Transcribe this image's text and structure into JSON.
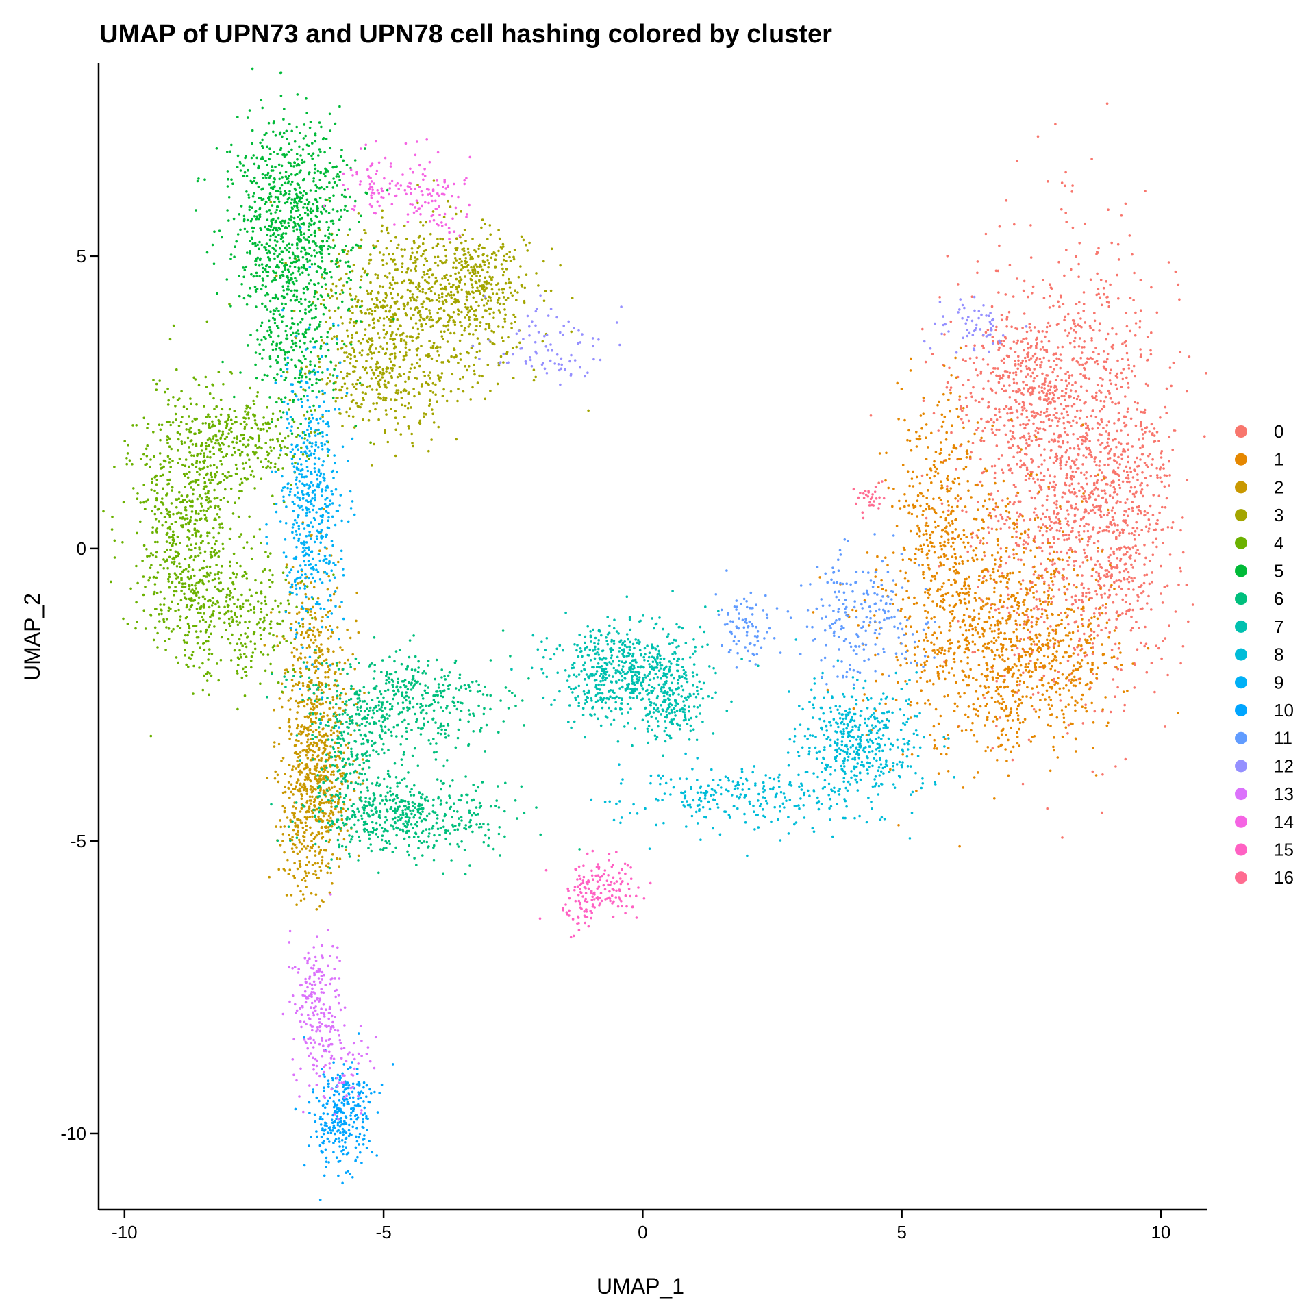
{
  "chart_data": {
    "type": "scatter",
    "title": "UMAP of UPN73 and UPN78 cell hashing colored by cluster",
    "xlabel": "UMAP_1",
    "ylabel": "UMAP_2",
    "xlim": [
      -10.5,
      10.9
    ],
    "ylim": [
      -11.3,
      8.3
    ],
    "xticks": [
      -10,
      -5,
      0,
      5,
      10
    ],
    "yticks": [
      5,
      0,
      -5,
      -10
    ],
    "xtick_labels": [
      "-10",
      "-5",
      "0",
      "5",
      "10"
    ],
    "ytick_labels": [
      "5",
      "0",
      "-5",
      "-10"
    ],
    "grid": false,
    "legend_position": "right",
    "series": [
      {
        "name": "0",
        "color": "#F8766D",
        "regions": [
          {
            "cx": 8.3,
            "cy": 1.3,
            "sx": 1.0,
            "sy": 1.9,
            "n": 1400
          },
          {
            "cx": 7.3,
            "cy": 2.8,
            "sx": 0.7,
            "sy": 0.6,
            "n": 300
          },
          {
            "cx": 9.2,
            "cy": 0.5,
            "sx": 0.5,
            "sy": 1.5,
            "n": 300
          }
        ]
      },
      {
        "name": "1",
        "color": "#E58700",
        "regions": [
          {
            "cx": 6.6,
            "cy": -1.2,
            "sx": 1.0,
            "sy": 1.2,
            "n": 900
          },
          {
            "cx": 7.7,
            "cy": -2.0,
            "sx": 0.7,
            "sy": 0.6,
            "n": 300
          },
          {
            "cx": 5.7,
            "cy": 0.8,
            "sx": 0.4,
            "sy": 1.0,
            "n": 250
          }
        ]
      },
      {
        "name": "2",
        "color": "#C99800",
        "regions": [
          {
            "cx": -6.3,
            "cy": -2.6,
            "sx": 0.35,
            "sy": 1.1,
            "n": 500
          },
          {
            "cx": -6.3,
            "cy": -4.0,
            "sx": 0.35,
            "sy": 0.6,
            "n": 300
          },
          {
            "cx": -6.5,
            "cy": -5.2,
            "sx": 0.25,
            "sy": 0.5,
            "n": 120
          }
        ]
      },
      {
        "name": "3",
        "color": "#A3A500",
        "regions": [
          {
            "cx": -4.2,
            "cy": 4.2,
            "sx": 1.0,
            "sy": 0.7,
            "n": 800
          },
          {
            "cx": -5.0,
            "cy": 2.9,
            "sx": 0.7,
            "sy": 0.5,
            "n": 300
          },
          {
            "cx": -3.2,
            "cy": 4.6,
            "sx": 0.4,
            "sy": 0.4,
            "n": 150
          }
        ]
      },
      {
        "name": "4",
        "color": "#6BB100",
        "regions": [
          {
            "cx": -8.8,
            "cy": 0.3,
            "sx": 0.55,
            "sy": 1.1,
            "n": 700
          },
          {
            "cx": -7.8,
            "cy": 1.8,
            "sx": 0.7,
            "sy": 0.4,
            "n": 300
          },
          {
            "cx": -7.8,
            "cy": -1.2,
            "sx": 0.7,
            "sy": 0.5,
            "n": 250
          }
        ]
      },
      {
        "name": "5",
        "color": "#00BA38",
        "regions": [
          {
            "cx": -6.8,
            "cy": 5.5,
            "sx": 0.6,
            "sy": 0.9,
            "n": 900
          },
          {
            "cx": -6.7,
            "cy": 3.4,
            "sx": 0.4,
            "sy": 0.6,
            "n": 200
          }
        ]
      },
      {
        "name": "6",
        "color": "#00BF7D",
        "regions": [
          {
            "cx": -4.8,
            "cy": -2.6,
            "sx": 1.0,
            "sy": 0.4,
            "n": 450
          },
          {
            "cx": -4.6,
            "cy": -4.6,
            "sx": 0.9,
            "sy": 0.35,
            "n": 450
          },
          {
            "cx": -5.6,
            "cy": -3.7,
            "sx": 0.4,
            "sy": 0.6,
            "n": 200
          }
        ]
      },
      {
        "name": "7",
        "color": "#00C0AF",
        "regions": [
          {
            "cx": -0.4,
            "cy": -2.1,
            "sx": 0.7,
            "sy": 0.45,
            "n": 600
          },
          {
            "cx": 0.6,
            "cy": -2.7,
            "sx": 0.3,
            "sy": 0.3,
            "n": 150
          }
        ]
      },
      {
        "name": "8",
        "color": "#00BCD8",
        "regions": [
          {
            "cx": 4.2,
            "cy": -3.3,
            "sx": 0.6,
            "sy": 0.5,
            "n": 450
          },
          {
            "cx": 2.0,
            "cy": -4.3,
            "sx": 1.2,
            "sy": 0.3,
            "n": 250
          }
        ]
      },
      {
        "name": "9",
        "color": "#00B0F6",
        "regions": [
          {
            "cx": -6.4,
            "cy": 0.8,
            "sx": 0.3,
            "sy": 1.2,
            "n": 500
          }
        ]
      },
      {
        "name": "10",
        "color": "#00A5FF",
        "regions": [
          {
            "cx": -5.8,
            "cy": -9.7,
            "sx": 0.3,
            "sy": 0.45,
            "n": 300
          }
        ]
      },
      {
        "name": "11",
        "color": "#619CFF",
        "regions": [
          {
            "cx": 4.2,
            "cy": -1.2,
            "sx": 0.6,
            "sy": 0.6,
            "n": 200
          },
          {
            "cx": 2.0,
            "cy": -1.4,
            "sx": 0.3,
            "sy": 0.3,
            "n": 80
          }
        ]
      },
      {
        "name": "12",
        "color": "#9590FF",
        "regions": [
          {
            "cx": -1.8,
            "cy": 3.5,
            "sx": 0.6,
            "sy": 0.3,
            "n": 80
          },
          {
            "cx": 6.4,
            "cy": 3.8,
            "sx": 0.4,
            "sy": 0.2,
            "n": 60
          }
        ]
      },
      {
        "name": "13",
        "color": "#DB72FB",
        "regions": [
          {
            "cx": -6.3,
            "cy": -7.8,
            "sx": 0.25,
            "sy": 0.6,
            "n": 200
          },
          {
            "cx": -5.8,
            "cy": -8.8,
            "sx": 0.3,
            "sy": 0.4,
            "n": 60
          }
        ]
      },
      {
        "name": "14",
        "color": "#F564E3",
        "regions": [
          {
            "cx": -4.9,
            "cy": 6.3,
            "sx": 0.5,
            "sy": 0.3,
            "n": 100
          },
          {
            "cx": -4.0,
            "cy": 5.9,
            "sx": 0.3,
            "sy": 0.3,
            "n": 60
          }
        ]
      },
      {
        "name": "15",
        "color": "#FF61C3",
        "regions": [
          {
            "cx": -0.8,
            "cy": -5.8,
            "sx": 0.35,
            "sy": 0.25,
            "n": 140
          },
          {
            "cx": -1.2,
            "cy": -6.2,
            "sx": 0.15,
            "sy": 0.2,
            "n": 30
          }
        ]
      },
      {
        "name": "16",
        "color": "#FF6C91",
        "regions": [
          {
            "cx": 4.4,
            "cy": 0.8,
            "sx": 0.12,
            "sy": 0.12,
            "n": 30
          }
        ]
      }
    ]
  }
}
